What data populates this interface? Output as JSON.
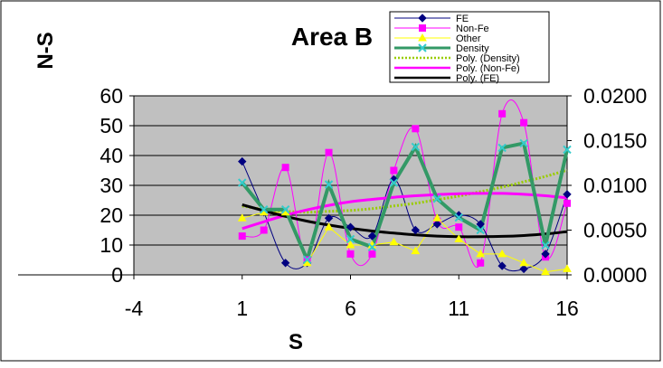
{
  "chart_data": {
    "type": "line",
    "title": "Area B",
    "xlabel": "S",
    "ylabel": "N-S",
    "xlim": [
      -4,
      16
    ],
    "x_ticks": [
      -4,
      1,
      6,
      11,
      16
    ],
    "ylim_left": [
      0,
      60
    ],
    "y_ticks_left": [
      0,
      10,
      20,
      30,
      40,
      50,
      60
    ],
    "ylim_right": [
      0,
      0.02
    ],
    "y_ticks_right": [
      "0.0000",
      "0.0050",
      "0.0100",
      "0.0150",
      "0.0200"
    ],
    "grid": "horizontal",
    "plot_background": "#c0c0c0",
    "legend_position": "top-right",
    "x": [
      1,
      2,
      3,
      4,
      5,
      6,
      7,
      8,
      9,
      10,
      11,
      12,
      13,
      14,
      15,
      16
    ],
    "series": [
      {
        "name": "FE",
        "axis": "left",
        "style": "smooth-markers",
        "marker": "diamond",
        "color": "#000080",
        "values": [
          38,
          21,
          4,
          4,
          19,
          16,
          13,
          32,
          15,
          17,
          20,
          17,
          3,
          2,
          7,
          27
        ]
      },
      {
        "name": "Non-Fe",
        "axis": "left",
        "style": "smooth-markers",
        "marker": "square",
        "color": "#ff00ff",
        "values": [
          13,
          15,
          36,
          5,
          41,
          7,
          7,
          35,
          49,
          18,
          16,
          4,
          54,
          51,
          6,
          24
        ]
      },
      {
        "name": "Other",
        "axis": "left",
        "style": "straight-markers",
        "marker": "triangle",
        "color": "#ffff00",
        "values": [
          19,
          21,
          21,
          4,
          16,
          10,
          10,
          11,
          8,
          19,
          12,
          7,
          7,
          4,
          1,
          2
        ]
      },
      {
        "name": "Density",
        "axis": "right",
        "style": "straight-markers-thick",
        "marker": "x",
        "color": "#339966",
        "marker_color": "#33cccc",
        "values": [
          0.0103,
          0.0073,
          0.0073,
          0.0017,
          0.0101,
          0.004,
          0.0031,
          0.0103,
          0.0143,
          0.0085,
          0.0064,
          0.005,
          0.0142,
          0.0147,
          0.0033,
          0.014
        ]
      },
      {
        "name": "Poly. (Density)",
        "axis": "right",
        "style": "dotted-trend",
        "color": "#99cc00",
        "values": [
          0.0077,
          0.0073,
          0.0071,
          0.007,
          0.0071,
          0.0072,
          0.0074,
          0.0077,
          0.008,
          0.0084,
          0.0088,
          0.0093,
          0.0098,
          0.0104,
          0.011,
          0.0117
        ]
      },
      {
        "name": "Poly. (Non-Fe)",
        "axis": "left",
        "style": "trend",
        "color": "#ff00ff",
        "values": [
          15.5,
          17.8,
          20.0,
          21.8,
          23.3,
          24.5,
          25.3,
          26.0,
          26.5,
          26.9,
          27.2,
          27.3,
          27.3,
          27.0,
          26.5,
          25.8
        ]
      },
      {
        "name": "Poly. (FE)",
        "axis": "left",
        "style": "trend",
        "color": "#000000",
        "values": [
          23.5,
          21.5,
          19.6,
          18.0,
          16.7,
          15.6,
          14.7,
          14.0,
          13.4,
          13.0,
          12.8,
          12.8,
          12.9,
          13.2,
          13.7,
          14.5
        ]
      }
    ]
  }
}
